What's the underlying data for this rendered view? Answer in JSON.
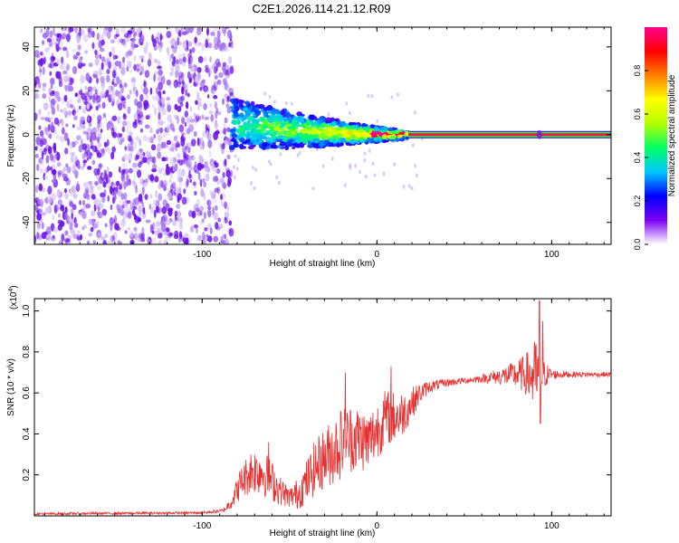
{
  "title": "C2E1.2026.114.21.12.R09",
  "chart_data": [
    {
      "type": "heatmap",
      "name": "spectrogram",
      "xlabel": "Height of straight line (km)",
      "ylabel": "Frequency (Hz)",
      "xlim": [
        -196,
        134
      ],
      "ylim": [
        -50,
        49
      ],
      "x_ticks": [
        -100,
        0,
        100
      ],
      "y_ticks": [
        -40,
        -20,
        0,
        20,
        40
      ],
      "noise_region_x": [
        -196,
        -83
      ],
      "noisy_signal_x": [
        -83,
        18
      ],
      "steady_signal_x": [
        18,
        134
      ],
      "signal_frequency": 0,
      "max_amplitude_region_x": [
        -5,
        134
      ],
      "colorbar": {
        "label": "Normalized spectral amplitude",
        "range": [
          0.0,
          1.0
        ],
        "ticks": [
          "0.0",
          "0.2",
          "0.4",
          "0.6",
          "0.8"
        ],
        "colors": [
          "#ffffff",
          "#7a00f0",
          "#0000ff",
          "#00c8ff",
          "#00ff64",
          "#b4ff00",
          "#ffff00",
          "#ff8000",
          "#ff0000",
          "#ff0090"
        ]
      }
    },
    {
      "type": "line",
      "name": "snr",
      "xlabel": "Height of straight line (km)",
      "ylabel": "SNR (10 * v/v)",
      "y_multiplier_base": "(x10",
      "y_multiplier_exp": "4",
      "y_multiplier_close": ")",
      "xlim": [
        -196,
        134
      ],
      "ylim": [
        0.0,
        1.06
      ],
      "x_ticks": [
        -100,
        0,
        100
      ],
      "y_ticks": [
        0.2,
        0.4,
        0.6,
        0.8,
        1.0
      ],
      "y_tick_labels": [
        "0.2",
        "0.4",
        "0.6",
        "0.8",
        "1.0"
      ],
      "color": "#e83030",
      "envelope": {
        "x": [
          -196,
          -100,
          -88,
          -84,
          -78,
          -72,
          -66,
          -60,
          -55,
          -50,
          -45,
          -40,
          -35,
          -30,
          -25,
          -20,
          -15,
          -10,
          -5,
          0,
          5,
          10,
          15,
          20,
          25,
          30,
          40,
          50,
          60,
          70,
          80,
          85,
          90,
          92,
          95,
          100,
          110,
          120,
          134
        ],
        "mid": [
          0.01,
          0.015,
          0.025,
          0.06,
          0.16,
          0.22,
          0.22,
          0.17,
          0.12,
          0.09,
          0.11,
          0.17,
          0.24,
          0.28,
          0.32,
          0.36,
          0.38,
          0.38,
          0.36,
          0.42,
          0.48,
          0.48,
          0.5,
          0.55,
          0.6,
          0.63,
          0.65,
          0.66,
          0.67,
          0.68,
          0.69,
          0.69,
          0.68,
          0.68,
          0.69,
          0.69,
          0.69,
          0.69,
          0.69
        ],
        "amp": [
          0.006,
          0.006,
          0.01,
          0.03,
          0.08,
          0.11,
          0.12,
          0.1,
          0.07,
          0.05,
          0.08,
          0.11,
          0.14,
          0.15,
          0.17,
          0.18,
          0.17,
          0.16,
          0.15,
          0.15,
          0.14,
          0.13,
          0.11,
          0.08,
          0.05,
          0.03,
          0.02,
          0.015,
          0.02,
          0.04,
          0.07,
          0.1,
          0.18,
          0.2,
          0.08,
          0.025,
          0.015,
          0.012,
          0.012
        ]
      },
      "peaks": [
        {
          "x": 93,
          "y": 1.05
        },
        {
          "x": 95,
          "y": 0.95
        },
        {
          "x": 93.5,
          "y": 0.45
        },
        {
          "x": 8,
          "y": 0.73
        },
        {
          "x": -62,
          "y": 0.36
        },
        {
          "x": -18,
          "y": 0.7
        }
      ]
    }
  ]
}
